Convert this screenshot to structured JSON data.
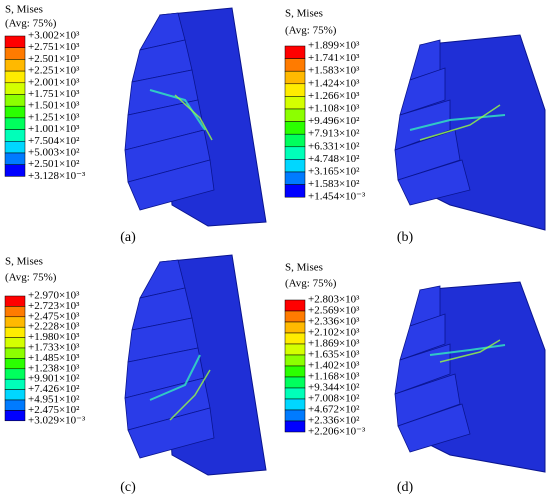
{
  "panels": [
    {
      "title": "S, Mises",
      "subtitle": "(Avg: 75%)",
      "caption": "(a)",
      "labels": [
        "+3.002×10³",
        "+2.751×10³",
        "+2.501×10³",
        "+2.251×10³",
        "+2.001×10³",
        "+1.751×10³",
        "+1.501×10³",
        "+1.251×10³",
        "+1.001×10³",
        "+7.504×10²",
        "+5.003×10²",
        "+2.501×10²",
        "+3.128×10⁻³"
      ]
    },
    {
      "title": "S, Mises",
      "subtitle": "(Avg: 75%)",
      "caption": "(b)",
      "labels": [
        "+1.899×10³",
        "+1.741×10³",
        "+1.583×10³",
        "+1.424×10³",
        "+1.266×10³",
        "+1.108×10³",
        "+9.496×10²",
        "+7.913×10²",
        "+6.331×10²",
        "+4.748×10²",
        "+3.165×10²",
        "+1.583×10²",
        "+1.454×10⁻³"
      ]
    },
    {
      "title": "S, Mises",
      "subtitle": "(Avg: 75%)",
      "caption": "(c)",
      "labels": [
        "+2.970×10³",
        "+2.723×10³",
        "+2.475×10³",
        "+2.228×10³",
        "+1.980×10³",
        "+1.733×10³",
        "+1.485×10³",
        "+1.238×10³",
        "+9.901×10²",
        "+7.426×10²",
        "+4.951×10²",
        "+2.475×10²",
        "+3.029×10⁻³"
      ]
    },
    {
      "title": "S, Mises",
      "subtitle": "(Avg: 75%)",
      "caption": "(d)",
      "labels": [
        "+2.803×10³",
        "+2.569×10³",
        "+2.336×10³",
        "+2.102×10³",
        "+1.869×10³",
        "+1.635×10³",
        "+1.402×10³",
        "+1.168×10³",
        "+9.344×10²",
        "+7.008×10²",
        "+4.672×10²",
        "+2.336×10²",
        "+2.206×10⁻³"
      ]
    }
  ]
}
